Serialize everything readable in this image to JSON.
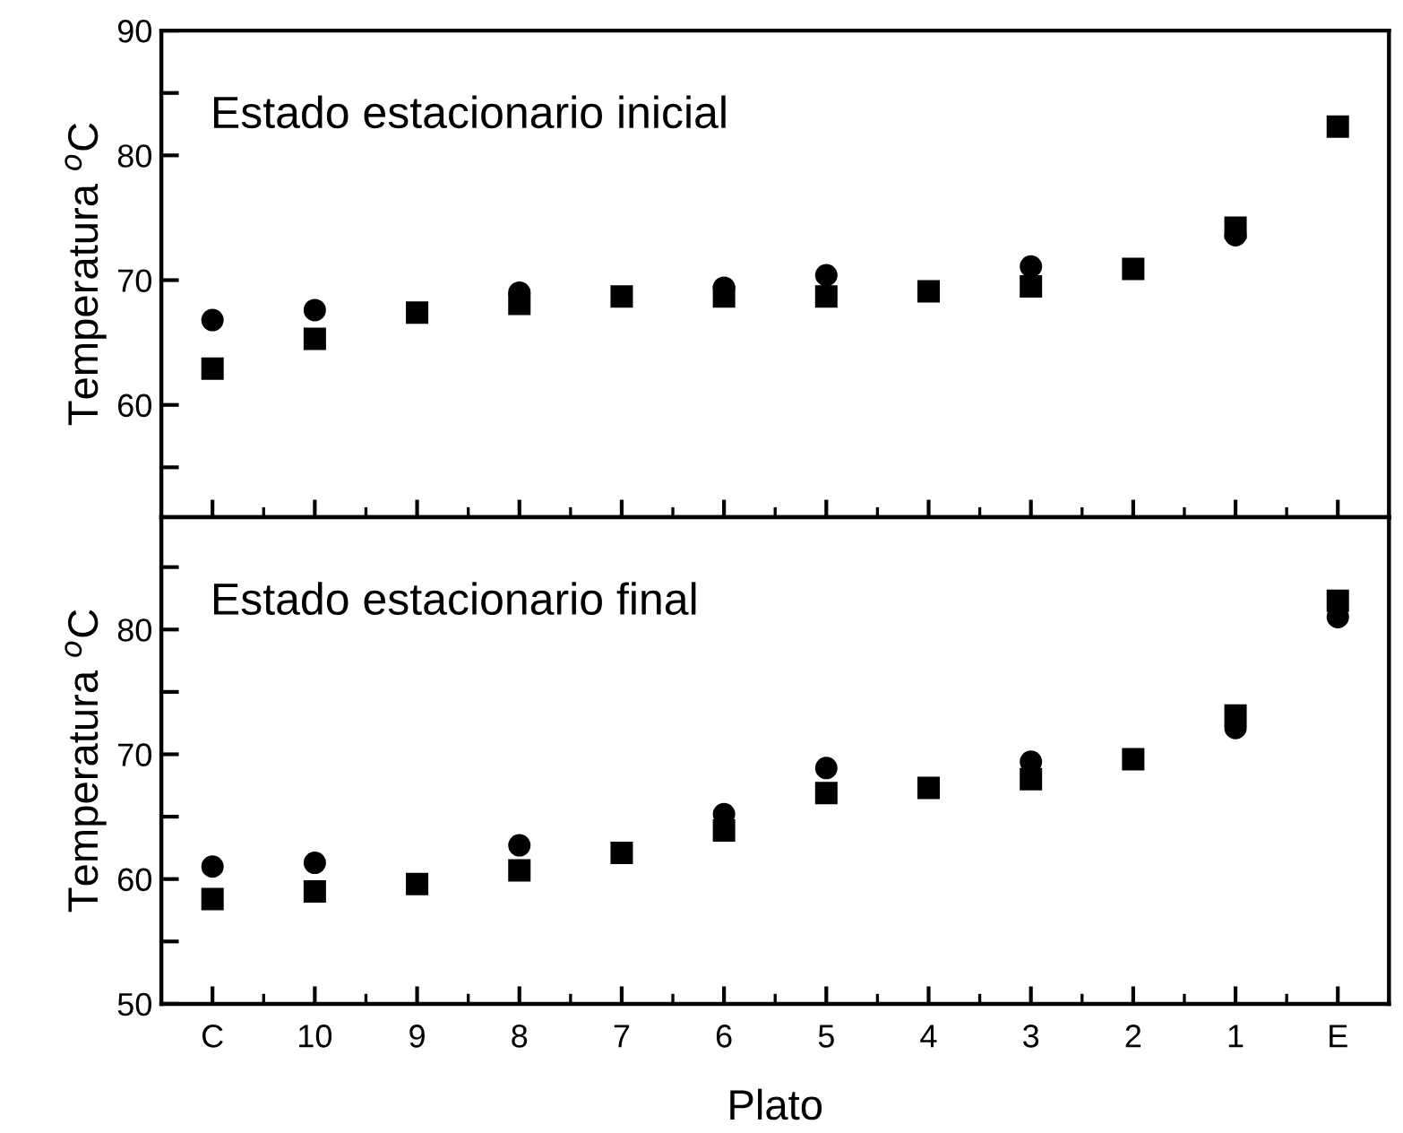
{
  "chart_data": [
    {
      "type": "scatter",
      "annotations": [
        "Estado estacionario inicial"
      ],
      "ylabel": "Temperatura $^{o}$C",
      "categories": [
        null,
        null,
        null,
        null,
        null,
        null,
        null,
        null,
        null,
        null,
        null,
        null
      ],
      "series": [
        {
          "color": "#000000",
          "marker": "circle",
          "values": [
            66.8,
            67.6,
            null,
            69.0,
            null,
            69.4,
            70.4,
            null,
            71.1,
            null,
            73.6,
            null
          ]
        },
        {
          "color": "#000000",
          "marker": "square",
          "values": [
            62.9,
            65.3,
            67.4,
            68.1,
            68.7,
            68.7,
            68.7,
            69.1,
            69.5,
            70.9,
            74.2,
            82.3
          ]
        }
      ],
      "ylim": [
        51,
        90
      ],
      "yticks": [
        {
          "value": 55,
          "label": null
        },
        60,
        70,
        80,
        {
          "value": 85,
          "label": null
        },
        90
      ],
      "tick_labels": "y",
      "grid": false,
      "legend": false
    },
    {
      "type": "scatter",
      "annotations": [
        "Estado estacionario final"
      ],
      "ylabel": "Temperatura $^{o}$C",
      "xlabel": "Plato",
      "categories": [
        "C",
        "10",
        "9",
        "8",
        "7",
        "6",
        "5",
        "4",
        "3",
        "2",
        "1",
        "E"
      ],
      "series": [
        {
          "color": "#000000",
          "marker": "circle",
          "values": [
            61.0,
            61.3,
            null,
            62.7,
            null,
            65.2,
            68.9,
            null,
            69.4,
            null,
            72.1,
            81.0
          ]
        },
        {
          "color": "#000000",
          "marker": "square",
          "values": [
            58.4,
            59.0,
            59.6,
            60.7,
            62.1,
            63.9,
            66.9,
            67.3,
            68.0,
            69.6,
            73.1,
            82.3
          ]
        }
      ],
      "ylim": [
        50,
        89
      ],
      "yticks": [
        50,
        {
          "value": 55,
          "label": null
        },
        60,
        {
          "value": 65,
          "label": null
        },
        70,
        {
          "value": 75,
          "label": null
        },
        80,
        {
          "value": 85,
          "label": null
        }
      ],
      "grid": false,
      "legend": false
    }
  ]
}
